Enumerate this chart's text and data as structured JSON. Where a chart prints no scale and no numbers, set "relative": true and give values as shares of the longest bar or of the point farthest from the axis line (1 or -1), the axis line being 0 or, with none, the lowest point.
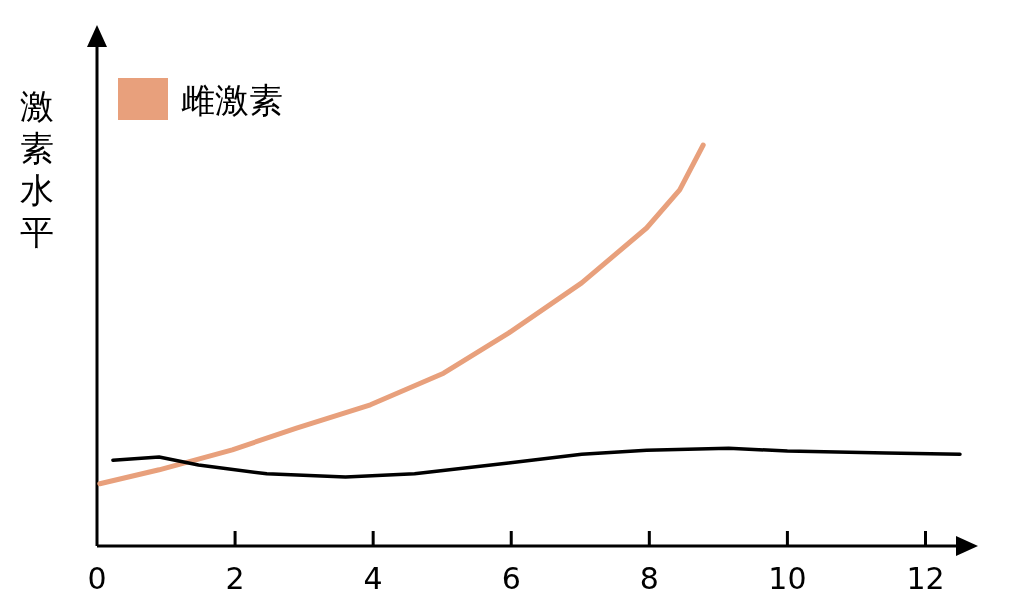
{
  "chart_data": {
    "type": "line",
    "ylabel": "激素水平",
    "relative": true,
    "legend": "top left",
    "xlim": [
      0,
      12.5
    ],
    "xticks": [
      0,
      2,
      4,
      6,
      8,
      10,
      12
    ],
    "series": [
      {
        "name": "雌激素",
        "color": "#e8a07c",
        "x": [
          0.04,
          0.9,
          1.96,
          2.89,
          3.96,
          5.02,
          5.96,
          7.02,
          7.96,
          8.44,
          8.78
        ],
        "values": [
          0.155,
          0.19,
          0.24,
          0.294,
          0.352,
          0.431,
          0.531,
          0.656,
          0.793,
          0.888,
          1.0
        ]
      },
      {
        "color": "#000000",
        "x": [
          0.23,
          0.9,
          1.47,
          2.46,
          3.6,
          4.6,
          5.96,
          7.02,
          7.96,
          9.15,
          10.0,
          11.43,
          12.5
        ],
        "values": [
          0.214,
          0.222,
          0.202,
          0.18,
          0.172,
          0.18,
          0.207,
          0.229,
          0.239,
          0.244,
          0.237,
          0.232,
          0.229
        ]
      }
    ]
  }
}
